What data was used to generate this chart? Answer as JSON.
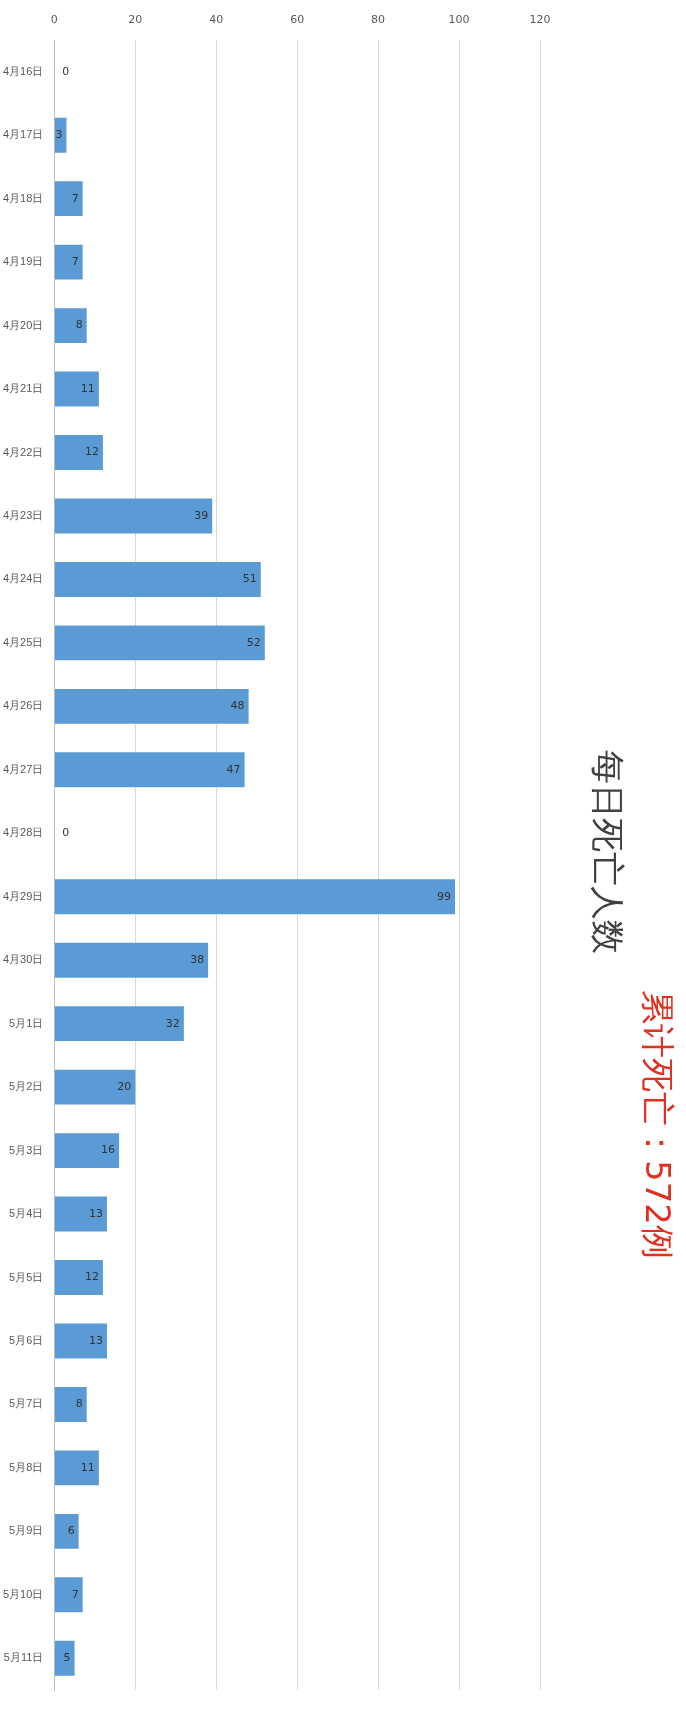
{
  "chart_data": {
    "type": "bar",
    "orientation": "horizontal",
    "title": "每日死亡人数",
    "subtitle": "累计死亡：572例",
    "categories": [
      "4月16日",
      "4月17日",
      "4月18日",
      "4月19日",
      "4月20日",
      "4月21日",
      "4月22日",
      "4月23日",
      "4月24日",
      "4月25日",
      "4月26日",
      "4月27日",
      "4月28日",
      "4月29日",
      "4月30日",
      "5月1日",
      "5月2日",
      "5月3日",
      "5月4日",
      "5月5日",
      "5月6日",
      "5月7日",
      "5月8日",
      "5月9日",
      "5月10日",
      "5月11日"
    ],
    "values": [
      0,
      3,
      7,
      7,
      8,
      11,
      12,
      39,
      51,
      52,
      48,
      47,
      0,
      99,
      38,
      32,
      20,
      16,
      13,
      12,
      13,
      8,
      11,
      6,
      7,
      5
    ],
    "color": "#5b9bd5",
    "xlim": [
      0,
      120
    ],
    "xticks": [
      0,
      20,
      40,
      60,
      80,
      100,
      120
    ],
    "grid": "x",
    "data_labels": true
  }
}
